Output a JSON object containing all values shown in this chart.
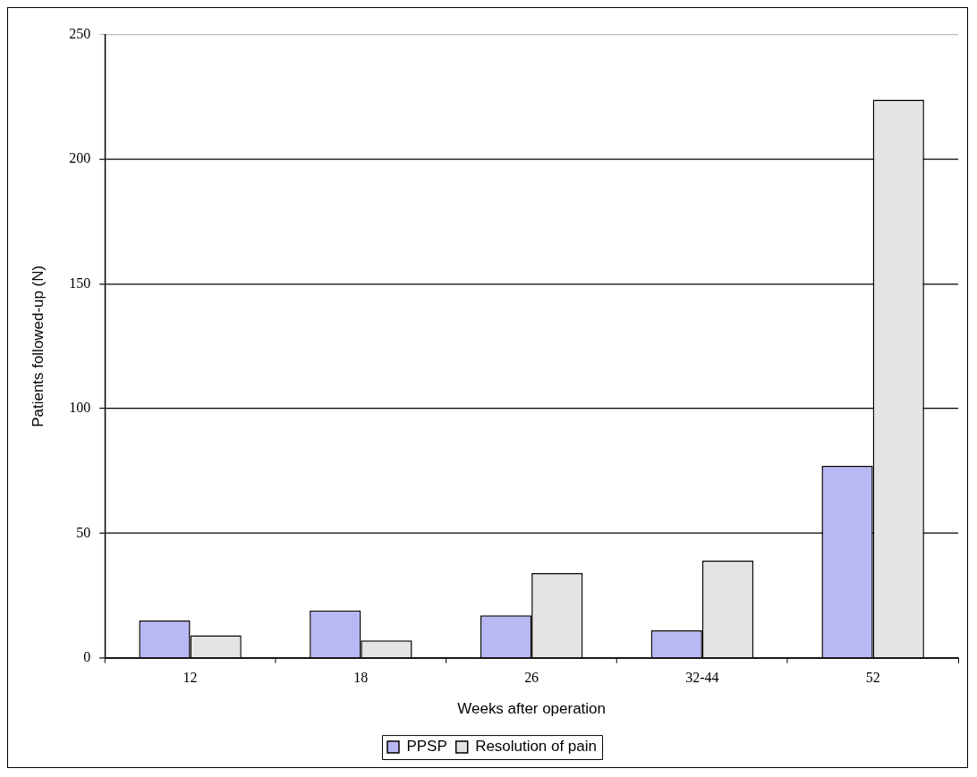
{
  "chart_data": {
    "type": "bar",
    "xlabel": "Weeks after operation",
    "ylabel": "Patients followed-up (N)",
    "categories": [
      "12",
      "18",
      "26",
      "32-44",
      "52"
    ],
    "series": [
      {
        "name": "PPSP",
        "color": "#b8b8f4",
        "values": [
          15,
          19,
          17,
          11,
          77
        ]
      },
      {
        "name": "Resolution of pain",
        "color": "#e4e4e4",
        "values": [
          9,
          7,
          34,
          39,
          224
        ]
      }
    ],
    "ylim": [
      0,
      250
    ],
    "yticks": [
      0,
      50,
      100,
      150,
      200,
      250
    ],
    "grid": "y",
    "legend": "bottom"
  }
}
